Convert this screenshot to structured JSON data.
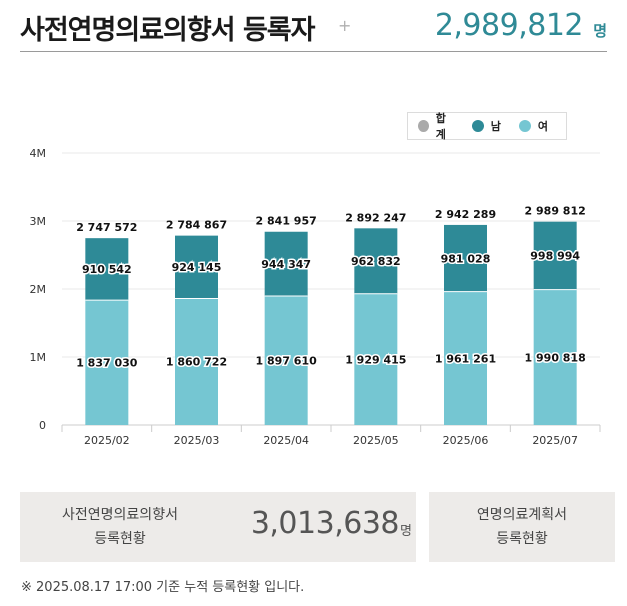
{
  "header": {
    "title": "사전연명의료의향서 등록자",
    "plus": "+",
    "total": "2,989,812",
    "total_unit": "명"
  },
  "legend": {
    "items": [
      {
        "label": "합계",
        "color": "#aaaaaa"
      },
      {
        "label": "남",
        "color": "#2e8a97"
      },
      {
        "label": "여",
        "color": "#75c6d2"
      }
    ]
  },
  "chart_data": {
    "type": "bar",
    "stacked": true,
    "categories": [
      "2025/02",
      "2025/03",
      "2025/04",
      "2025/05",
      "2025/06",
      "2025/07"
    ],
    "series": [
      {
        "name": "여",
        "color": "#75c6d2",
        "values": [
          1837030,
          1860722,
          1897610,
          1929415,
          1961261,
          1990818
        ],
        "labels": [
          "1 837 030",
          "1 860 722",
          "1 897 610",
          "1 929 415",
          "1 961 261",
          "1 990 818"
        ]
      },
      {
        "name": "남",
        "color": "#2e8a97",
        "values": [
          910542,
          924145,
          944347,
          962832,
          981028,
          998994
        ],
        "labels": [
          "910 542",
          "924 145",
          "944 347",
          "962 832",
          "981 028",
          "998 994"
        ]
      }
    ],
    "totals": {
      "name": "합계",
      "values": [
        2747572,
        2784867,
        2841957,
        2892247,
        2942289,
        2989812
      ],
      "labels": [
        "2 747 572",
        "2 784 867",
        "2 841 957",
        "2 892 247",
        "2 942 289",
        "2 989 812"
      ]
    },
    "ylim": [
      0,
      4000000
    ],
    "yticks": [
      0,
      1000000,
      2000000,
      3000000,
      4000000
    ],
    "ytick_labels": [
      "0",
      "1M",
      "2M",
      "3M",
      "4M"
    ],
    "grid": true,
    "legend_position": "top-right"
  },
  "cards": {
    "registered": {
      "label_line1": "사전연명의료의향서",
      "label_line2": "등록현황",
      "value": "3,013,638",
      "unit": "명"
    },
    "plan": {
      "label_line1": "연명의료계획서",
      "label_line2": "등록현황"
    }
  },
  "footnote": "※ 2025.08.17 17:00 기준 누적 등록현황 입니다."
}
